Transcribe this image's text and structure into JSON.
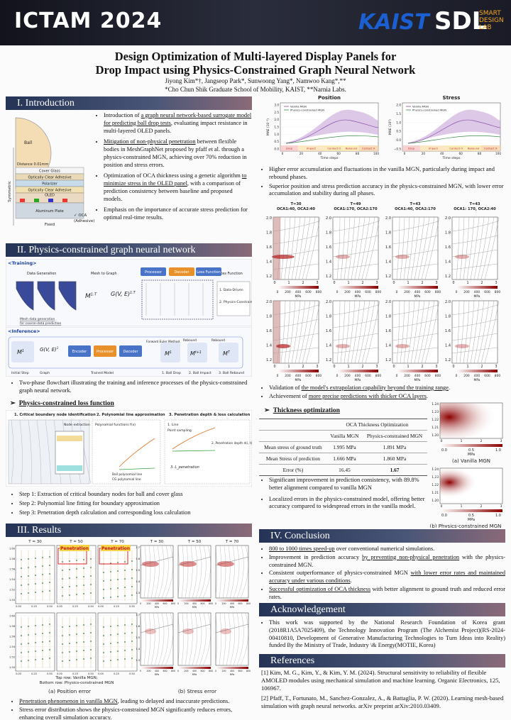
{
  "header": {
    "logo": "ICTAM 2024",
    "kaist": "KAIST",
    "sdl": "SDL",
    "sdl_sub": [
      "SMART",
      "DESIGN",
      "LAB"
    ]
  },
  "title": [
    "Design Optimization of Multi-layered Display Panels for",
    "Drop Impact using Physics-Constrained Graph Neural Network"
  ],
  "authors": "Jiyong Kim*†, Jangseop Park*, Sunwoong Yang*, Namwoo Kang*,**",
  "affiliation": "*Cho Chun Shik Graduate School of Mobility, KAIST, **Narnia Labs.",
  "intro": {
    "heading": "I.   Introduction",
    "figure": {
      "ball": "Ball",
      "symmetric": "Symmetric",
      "distance": "Distance 0.01mm",
      "layers": [
        "Cover Glass",
        "Optically Clear Adhesive",
        "Polarizer",
        "Optically Clear Adhesive",
        "OLED",
        "Aluminum Plate"
      ],
      "fixed": "Fixed",
      "oca": [
        "✓  OCA",
        "(Adhesive)"
      ]
    },
    "bullets": [
      [
        "Introduction of ",
        "a graph neural network-based surrogate model for predicting ball drop tests",
        ", evaluating impact resistance in multi-layered OLED panels."
      ],
      [
        "Mitigation of non-physical penetration",
        " between flexible bodies in MeshGraphNet proposed by pfaff et al. through a physics-constrained MGN, achieving over 70% reduction in position and stress errors."
      ],
      [
        "Optimization of OCA thickness using a genetic algorithm ",
        "to minimize stress in the OLED panel",
        ", with a comparison of prediction consistency between baseline and proposed models."
      ],
      [
        "Emphasis on the importance of accurate stress prediction for optimal real-time results."
      ]
    ]
  },
  "method": {
    "heading": "II.   Physics-constrained graph neural network",
    "training": {
      "tag": "<Training>",
      "labels": [
        "Data Generation",
        "Mesh to Graph",
        "Encoder",
        "Processor",
        "Decoder",
        "Loss Function",
        "1. Data-Driven",
        "2. Physics-Constraint",
        "Mesh data generation",
        "for coarse-data prediction"
      ],
      "m": "M",
      "g": "G(V, E)",
      "sup": "1:T"
    },
    "inference": {
      "tag": "<Inference>",
      "labels": [
        "Encoder",
        "Processor",
        "Decoder",
        "Initial Step",
        "Graph",
        "Trained Model",
        "1. Ball Drop",
        "2. Ball Impact",
        "3. Ball Rebound",
        "Rebound",
        "Rebound",
        "Forward Euler Method"
      ],
      "m": "M",
      "g": "G(V, E)",
      "sups": [
        "1",
        "1",
        "t+1",
        "T"
      ]
    },
    "caption": "Two-phase flowchart illustrating the training and inference processes of the physics-constrained graph neural network.",
    "loss_heading": "Physics-constrained loss function",
    "loss": {
      "titles": [
        "1.   Critical boundary node identification",
        "2. Polynomial line approximation",
        "3.   Penetration depth & loss calculation"
      ],
      "labels": [
        "Node extraction",
        "Polynomial functions f(x)",
        "Ball polynomial line",
        "CG polynomial line",
        "1.  Line",
        "Point sampling",
        "2. Penetration depth d(i, t)",
        "3. L_penetration"
      ]
    },
    "steps": [
      "Step 1: Extraction of critical boundary nodes for ball and cover glass",
      "Step 2: Polynomial line fitting for boundary approximation",
      "Step 3: Penetration depth calculation and corresponding loss calculation"
    ]
  },
  "results": {
    "heading": "III.  Results",
    "panel_titles": [
      "T = 30",
      "T = 50",
      "T = 70"
    ],
    "penetration": "Penetration",
    "pos_yticks": [
      "1.60",
      "1.58",
      "1.56",
      "1.54",
      "1.52",
      "1.50"
    ],
    "pos_xticks": [
      "0.00",
      "0.25",
      "0.50"
    ],
    "stress_yticks": [
      "1.7",
      "1.6",
      "1.5",
      "1.4",
      "1.3"
    ],
    "stress_cticks": [
      "0",
      "200",
      "400",
      "600",
      "800"
    ],
    "unit": "MPa",
    "caption": [
      "Top row: Vanilla MGN;",
      "Bottom row: Physics-constrained MGN"
    ],
    "subcaptions": [
      "(a) Position error",
      "(b) Stress error"
    ],
    "bullets": [
      [
        "Penetration phenomenon in vanilla MGN",
        ", leading to delayed and inaccurate predictions."
      ],
      [
        "Stress error distribution shows the physics-constrained MGN significantly reduces errors, enhancing overall simulation accuracy."
      ]
    ]
  },
  "error_plots": {
    "titles": [
      "Position",
      "Stress"
    ],
    "legend": [
      "Vanilla MGN",
      "Physics-constrained MGN"
    ],
    "ylabels": [
      "MAE (10⁻³)",
      "MAE (10³)"
    ],
    "xlabel": "Time steps",
    "phases": [
      "Drop",
      "Impact",
      "Contact O",
      "Rebound",
      "Contact X"
    ],
    "pos_yticks": [
      "3.0",
      "2.5",
      "2.0",
      "1.5",
      "1.0",
      "0.5",
      "0.0"
    ],
    "stress_yticks": [
      "2.0",
      "1.5",
      "1.0",
      "0.5",
      "0.0",
      "−0.5"
    ],
    "xticks": [
      "0",
      "20",
      "40",
      "60",
      "80",
      "100"
    ],
    "bullets": [
      "Higher error accumulation and fluctuations in the vanilla MGN, particularly during impact and rebound phases.",
      "Superior position and stress prediction accuracy in the physics-constrained MGN, with lower error accumulation and stability during all phases."
    ]
  },
  "extrapolation": {
    "titles": [
      [
        "T=30",
        "OCA1:40, OCA2:40"
      ],
      [
        "T=49",
        "OCA1:170, OCA2:170"
      ],
      [
        "T=43",
        "OCA1:40, OCA2:170"
      ],
      [
        "T=43",
        "OCA1: 170, OCA2:40"
      ]
    ],
    "yticks": [
      "2.0",
      "1.8",
      "1.6",
      "1.4",
      "1.2"
    ],
    "xticks": [
      "0",
      "1",
      "2",
      "3"
    ],
    "cticks": [
      "0",
      "200",
      "400",
      "600",
      "800"
    ],
    "unit": "MPa",
    "bullets": [
      [
        "Validation of ",
        "the model's extrapolation capability beyond the training range",
        "."
      ],
      [
        "Achievement of ",
        "more precise predictions with thicker OCA layers",
        "."
      ]
    ]
  },
  "thickness": {
    "heading": "Thickness optimization",
    "table": {
      "caption": "OCA Thickness Optimization",
      "columns": [
        "Vanilla MGN",
        "Physics-constrained MGN"
      ],
      "rows": [
        [
          "Mean stress of ground truth",
          "1.995 MPa",
          "1.891 MPa"
        ],
        [
          "Mean Stress of prediction",
          "1.666 MPa",
          "1.860 MPa"
        ],
        [
          "Error (%)",
          "16.45",
          "1.67"
        ]
      ]
    },
    "bullets": [
      "Significant improvement in prediction consistency, with 89.8% better alignment compared to vanilla MGN",
      "Localized errors in the physics-constrained model, offering better accuracy compared to widespread errors in the vanilla model."
    ],
    "maps": {
      "yticks": [
        "1.24",
        "1.23",
        "1.22",
        "1.21",
        "1.20"
      ],
      "xticks": [
        "0",
        "1",
        "2",
        "3"
      ],
      "cticks": [
        "0.0",
        "0.5",
        "1.0"
      ],
      "unit": "MPa",
      "captions": [
        "(a) Vanilla MGN",
        "(b) Physics-constrained MGN"
      ]
    }
  },
  "conclusion": {
    "heading": "IV.  Conclusion",
    "bullets": [
      [
        "800 to 1000 times speed-up",
        " over conventional numerical simulations."
      ],
      [
        "Improvement in prediction accuracy ",
        "by preventing non-physical penetration",
        " with the physics-constrained MGN."
      ],
      [
        "Consistent outperformance of physics-constrained MGN ",
        "with lower error rates and maintained accuracy under various conditions",
        "."
      ],
      [
        "Successful optimization of OCA thickness",
        " with better alignment to ground truth and reduced error rates."
      ]
    ]
  },
  "acknowledgement": {
    "heading": "Acknowledgement",
    "text": "This work was supported by the National Research Foundation of Korea grant (2018R1A5A7025409), the Technology Innovation Program (The Alchemist Project)(RS-2024-00410810, Development of Generative Manufacturing Technologies to Turn Ideas into Reality) funded By the Ministry of Trade, Industry \\& Energy(MOTIE, Korea)"
  },
  "references": {
    "heading": "References",
    "items": [
      "[1] Kim, M. G., Kim, Y., & Kim, Y. M. (2024). Structural sensitivity to reliability of flexible AMOLED modules using mechanical simulation and machine learning. Organic Electronics, 125, 106967.",
      "[2] Pfaff, T., Fortunato, M., Sanchez-Gonzalez, A., & Battaglia, P. W. (2020). Learning mesh-based simulation with graph neural networks. arXiv preprint arXiv:2010.03409."
    ]
  }
}
